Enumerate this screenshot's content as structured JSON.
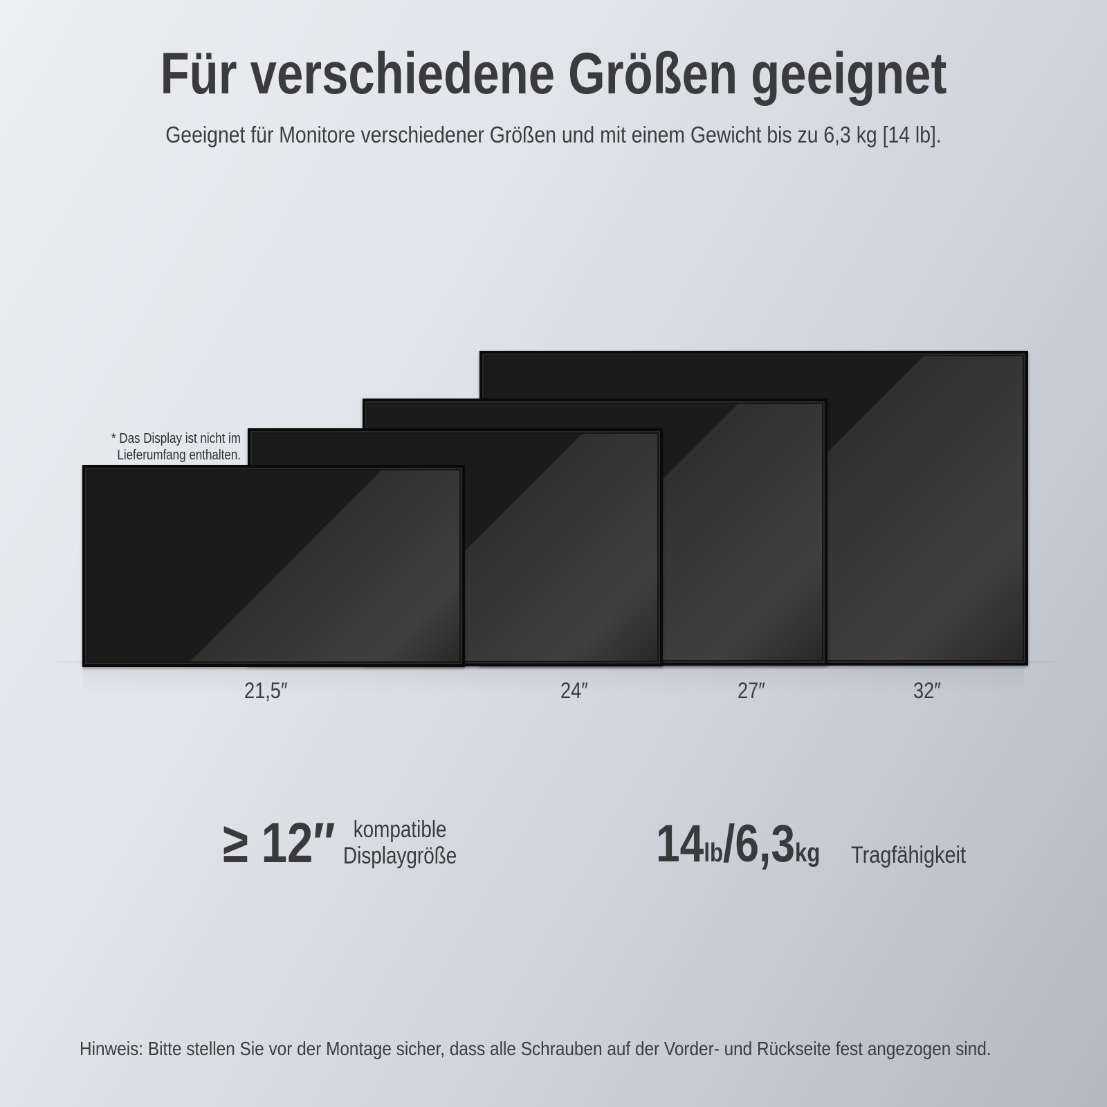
{
  "header": {
    "title": "Für verschiedene Größen geeignet",
    "subtitle": "Geeignet für Monitore verschiedener Größen und mit einem Gewicht bis zu 6,3 kg [14 lb]."
  },
  "note": {
    "line1": "* Das Display ist nicht im",
    "line2": "Lieferumfang enthalten."
  },
  "monitors": [
    {
      "label": "21,5″"
    },
    {
      "label": "24″"
    },
    {
      "label": "27″"
    },
    {
      "label": "32″"
    }
  ],
  "specs": {
    "size": {
      "value": "≥ 12″",
      "caption_line1": "kompatible",
      "caption_line2": "Displaygröße"
    },
    "weight": {
      "value1": "14",
      "unit1": "lb",
      "separator": "/",
      "value2": "6,3",
      "unit2": "kg",
      "caption": "Tragfähigkeit"
    }
  },
  "footer": {
    "hint": "Hinweis: Bitte stellen Sie vor der Montage sicher, dass alle Schrauben auf der Vorder- und Rückseite fest angezogen sind."
  },
  "colors": {
    "text": "#3a3a3c",
    "monitor_frame": "#0a0a0a",
    "monitor_screen": "#1b1b1b"
  }
}
